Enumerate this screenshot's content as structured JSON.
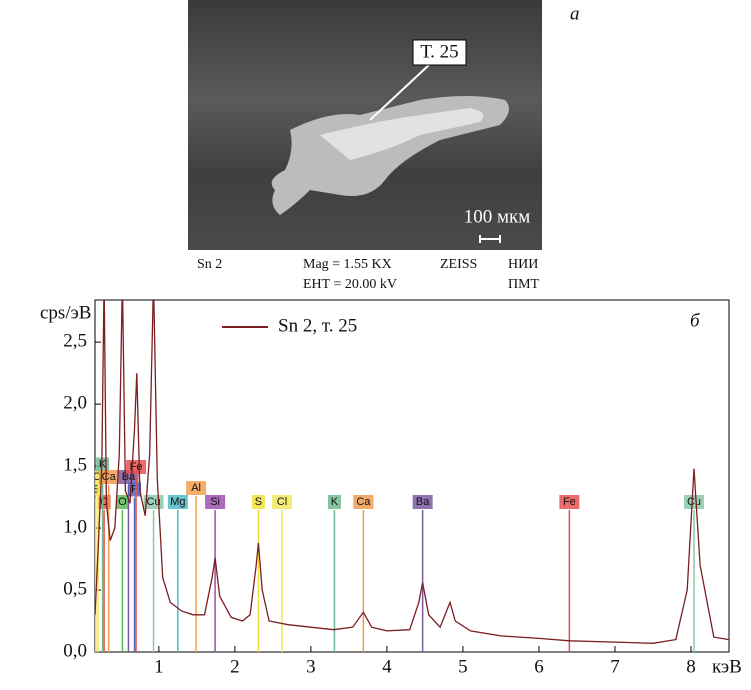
{
  "image": {
    "panel": "а",
    "point": "Т. 25",
    "scale": "100 мкм",
    "sample": "Sn 2",
    "mag": "Mag = 1.55 KX",
    "eht": "EHT = 20.00 kV",
    "maker": "ZEISS",
    "inst1": "НИИ",
    "inst2": "ПМТ"
  },
  "chart_data": {
    "type": "line",
    "panel": "б",
    "y_label": "cps/эВ",
    "x_label": "кэВ",
    "xlim": [
      0.16,
      8.5
    ],
    "xticks": [
      1,
      2,
      3,
      4,
      5,
      6,
      7,
      8
    ],
    "ylim": [
      0,
      2.84
    ],
    "yticks": [
      {
        "value": 0,
        "label": "0,0"
      },
      {
        "value": 0.5,
        "label": "0,5"
      },
      {
        "value": 1,
        "label": "1,0"
      },
      {
        "value": 1.5,
        "label": "1,5"
      },
      {
        "value": 2,
        "label": "2,0"
      },
      {
        "value": 2.5,
        "label": "2,5"
      }
    ],
    "x": [
      0.16,
      0.2,
      0.25,
      0.28,
      0.31,
      0.36,
      0.42,
      0.48,
      0.52,
      0.56,
      0.62,
      0.68,
      0.71,
      0.75,
      0.82,
      0.88,
      0.93,
      0.98,
      1.05,
      1.15,
      1.3,
      1.45,
      1.6,
      1.7,
      1.74,
      1.8,
      1.95,
      2.1,
      2.2,
      2.28,
      2.31,
      2.36,
      2.45,
      2.7,
      3.0,
      3.3,
      3.55,
      3.69,
      3.8,
      4.0,
      4.3,
      4.42,
      4.47,
      4.55,
      4.7,
      4.83,
      4.9,
      5.1,
      5.5,
      6.0,
      6.4,
      7.0,
      7.5,
      7.8,
      7.95,
      8.04,
      8.12,
      8.3,
      8.5
    ],
    "series": [
      {
        "name": "Sn 2, т. 25",
        "color": "#7a1e22",
        "values": [
          0.3,
          0.8,
          1.5,
          3.0,
          1.2,
          0.9,
          1.0,
          1.6,
          3.0,
          1.3,
          1.2,
          1.8,
          2.25,
          1.3,
          1.1,
          1.6,
          3.0,
          1.4,
          0.6,
          0.4,
          0.33,
          0.3,
          0.3,
          0.6,
          0.76,
          0.45,
          0.28,
          0.25,
          0.3,
          0.7,
          0.88,
          0.5,
          0.25,
          0.22,
          0.2,
          0.18,
          0.2,
          0.32,
          0.2,
          0.17,
          0.18,
          0.4,
          0.56,
          0.3,
          0.2,
          0.4,
          0.25,
          0.17,
          0.13,
          0.11,
          0.09,
          0.08,
          0.07,
          0.1,
          0.5,
          1.48,
          0.7,
          0.12,
          0.1
        ]
      }
    ],
    "markers": [
      {
        "label": "C",
        "energy": 0.28,
        "color": "#e8584f"
      },
      {
        "label": "O",
        "energy": 0.52,
        "color": "#5cb85c"
      },
      {
        "label": "Cu",
        "energy": 0.93,
        "color": "#88c9a8"
      },
      {
        "label": "Mg",
        "energy": 1.25,
        "color": "#4fb8c8"
      },
      {
        "label": "Al",
        "energy": 1.49,
        "color": "#f0a050"
      },
      {
        "label": "Si",
        "energy": 1.74,
        "color": "#a050b0"
      },
      {
        "label": "S",
        "energy": 2.31,
        "color": "#f0e040"
      },
      {
        "label": "Cl",
        "energy": 2.62,
        "color": "#f0e860"
      },
      {
        "label": "K",
        "energy": 3.31,
        "color": "#70b890"
      },
      {
        "label": "Ca",
        "energy": 3.69,
        "color": "#f09a50"
      },
      {
        "label": "Ba",
        "energy": 4.47,
        "color": "#7a5aa0"
      },
      {
        "label": "Fe",
        "energy": 6.4,
        "color": "#e85050"
      },
      {
        "label": "Cu",
        "energy": 8.04,
        "color": "#88c9a8"
      },
      {
        "label": "S",
        "energy": 0.17,
        "color": "#f0e040"
      },
      {
        "label": "Cl",
        "energy": 0.2,
        "color": "#f0e860"
      },
      {
        "label": "K",
        "energy": 0.26,
        "color": "#70b890"
      },
      {
        "label": "Ca",
        "energy": 0.34,
        "color": "#f09a50"
      },
      {
        "label": "Ba",
        "energy": 0.6,
        "color": "#7a5aa0"
      },
      {
        "label": "F",
        "energy": 0.68,
        "color": "#5060c0"
      },
      {
        "label": "Fe",
        "energy": 0.7,
        "color": "#e85050"
      }
    ]
  }
}
